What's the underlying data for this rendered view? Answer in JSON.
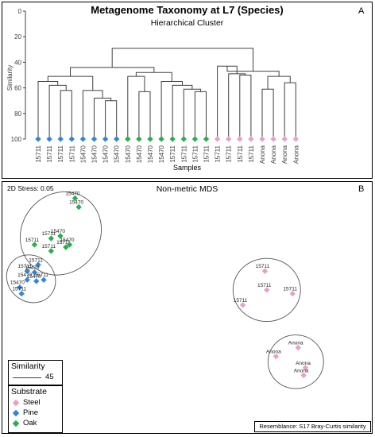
{
  "colors": {
    "steel": "#e8a0c8",
    "pine": "#2e86de",
    "oak": "#22b14c",
    "line": "#404040"
  },
  "panel_a": {
    "letter": "A",
    "title": "Metagenome Taxonomy at L7 (Species)",
    "subtitle": "Hierarchical Cluster"
  },
  "panel_b": {
    "letter": "B",
    "stress": "2D Stress: 0.05",
    "title": "Non-metric MDS",
    "resemblance": "Resemblance: S17 Bray-Curtis similarity",
    "similarity_legend": {
      "title": "Similarity",
      "value": "45"
    },
    "substrate_legend": {
      "title": "Substrate",
      "items": [
        "Steel",
        "Pine",
        "Oak"
      ]
    }
  },
  "chart_data": [
    {
      "type": "dendrogram",
      "title": "Metagenome Taxonomy at L7 (Species)",
      "subtitle": "Hierarchical Cluster",
      "xlabel": "Samples",
      "ylabel": "Similarity",
      "ylim": [
        100,
        0
      ],
      "yticks": [
        0,
        20,
        40,
        60,
        80,
        100
      ],
      "leaves": [
        {
          "label": "15711",
          "substrate": "Pine"
        },
        {
          "label": "15711",
          "substrate": "Pine"
        },
        {
          "label": "15711",
          "substrate": "Pine"
        },
        {
          "label": "15711",
          "substrate": "Pine"
        },
        {
          "label": "15470",
          "substrate": "Pine"
        },
        {
          "label": "15470",
          "substrate": "Pine"
        },
        {
          "label": "15470",
          "substrate": "Pine"
        },
        {
          "label": "15470",
          "substrate": "Pine"
        },
        {
          "label": "15470",
          "substrate": "Oak"
        },
        {
          "label": "15470",
          "substrate": "Oak"
        },
        {
          "label": "15470",
          "substrate": "Oak"
        },
        {
          "label": "15470",
          "substrate": "Oak"
        },
        {
          "label": "15711",
          "substrate": "Oak"
        },
        {
          "label": "15711",
          "substrate": "Oak"
        },
        {
          "label": "15711",
          "substrate": "Oak"
        },
        {
          "label": "15711",
          "substrate": "Oak"
        },
        {
          "label": "15711",
          "substrate": "Steel"
        },
        {
          "label": "15711",
          "substrate": "Steel"
        },
        {
          "label": "15711",
          "substrate": "Steel"
        },
        {
          "label": "15711",
          "substrate": "Steel"
        },
        {
          "label": "Anona",
          "substrate": "Steel"
        },
        {
          "label": "Anona",
          "substrate": "Steel"
        },
        {
          "label": "Anona",
          "substrate": "Steel"
        },
        {
          "label": "Anona",
          "substrate": "Steel"
        }
      ],
      "merges": [
        {
          "a": 6,
          "b": 7,
          "sim": 70
        },
        {
          "a": 5,
          "b": 24,
          "sim": 68
        },
        {
          "a": 4,
          "b": 25,
          "sim": 62
        },
        {
          "a": 2,
          "b": 3,
          "sim": 62
        },
        {
          "a": 1,
          "b": 27,
          "sim": 58
        },
        {
          "a": 0,
          "b": 28,
          "sim": 55
        },
        {
          "a": 29,
          "b": 26,
          "sim": 51
        },
        {
          "a": 9,
          "b": 10,
          "sim": 63
        },
        {
          "a": 8,
          "b": 31,
          "sim": 51
        },
        {
          "a": 14,
          "b": 15,
          "sim": 63
        },
        {
          "a": 13,
          "b": 33,
          "sim": 61
        },
        {
          "a": 12,
          "b": 34,
          "sim": 58
        },
        {
          "a": 11,
          "b": 35,
          "sim": 55
        },
        {
          "a": 32,
          "b": 36,
          "sim": 48
        },
        {
          "a": 30,
          "b": 37,
          "sim": 44
        },
        {
          "a": 18,
          "b": 19,
          "sim": 50
        },
        {
          "a": 17,
          "b": 39,
          "sim": 49
        },
        {
          "a": 16,
          "b": 40,
          "sim": 43
        },
        {
          "a": 20,
          "b": 21,
          "sim": 61
        },
        {
          "a": 22,
          "b": 23,
          "sim": 56
        },
        {
          "a": 42,
          "b": 43,
          "sim": 51
        },
        {
          "a": 41,
          "b": 44,
          "sim": 47
        },
        {
          "a": 38,
          "b": 45,
          "sim": 29
        }
      ]
    },
    {
      "type": "scatter",
      "title": "Non-metric MDS",
      "stress": 0.05,
      "xlim": [
        -1.0,
        1.0
      ],
      "ylim": [
        -1.0,
        1.0
      ],
      "points": [
        {
          "x": -0.61,
          "y": 0.87,
          "label": "15470",
          "substrate": "Oak"
        },
        {
          "x": -0.59,
          "y": 0.8,
          "label": "15470",
          "substrate": "Oak"
        },
        {
          "x": -0.83,
          "y": 0.5,
          "label": "15711",
          "substrate": "Oak"
        },
        {
          "x": -0.74,
          "y": 0.55,
          "label": "15711",
          "substrate": "Oak"
        },
        {
          "x": -0.69,
          "y": 0.57,
          "label": "15470",
          "substrate": "Oak"
        },
        {
          "x": -0.66,
          "y": 0.48,
          "label": "15711",
          "substrate": "Oak"
        },
        {
          "x": -0.74,
          "y": 0.45,
          "label": "15711",
          "substrate": "Oak"
        },
        {
          "x": -0.64,
          "y": 0.5,
          "label": "15470",
          "substrate": "Oak"
        },
        {
          "x": -0.81,
          "y": 0.34,
          "label": "15711",
          "substrate": "Pine"
        },
        {
          "x": -0.87,
          "y": 0.29,
          "label": "15711",
          "substrate": "Pine"
        },
        {
          "x": -0.83,
          "y": 0.28,
          "label": "15470",
          "substrate": "Pine"
        },
        {
          "x": -0.87,
          "y": 0.22,
          "label": "15470",
          "substrate": "Pine"
        },
        {
          "x": -0.82,
          "y": 0.21,
          "label": "15470",
          "substrate": "Pine"
        },
        {
          "x": -0.78,
          "y": 0.22,
          "label": "15711",
          "substrate": "Pine"
        },
        {
          "x": -0.91,
          "y": 0.16,
          "label": "15470",
          "substrate": "Pine"
        },
        {
          "x": -0.9,
          "y": 0.11,
          "label": "15711",
          "substrate": "Pine"
        },
        {
          "x": 0.42,
          "y": 0.29,
          "label": "15711",
          "substrate": "Steel"
        },
        {
          "x": 0.43,
          "y": 0.14,
          "label": "15711",
          "substrate": "Steel"
        },
        {
          "x": 0.57,
          "y": 0.11,
          "label": "15711",
          "substrate": "Steel"
        },
        {
          "x": 0.3,
          "y": 0.02,
          "label": "15711",
          "substrate": "Steel"
        },
        {
          "x": 0.6,
          "y": -0.32,
          "label": "Anona",
          "substrate": "Steel"
        },
        {
          "x": 0.48,
          "y": -0.39,
          "label": "Anona",
          "substrate": "Steel"
        },
        {
          "x": 0.64,
          "y": -0.48,
          "label": "Anona",
          "substrate": "Steel"
        },
        {
          "x": 0.63,
          "y": -0.54,
          "label": "Anona",
          "substrate": "Steel"
        }
      ],
      "clusters_at_similarity": 45,
      "legend": {
        "similarity": 45,
        "substrate": [
          "Steel",
          "Pine",
          "Oak"
        ]
      }
    }
  ]
}
